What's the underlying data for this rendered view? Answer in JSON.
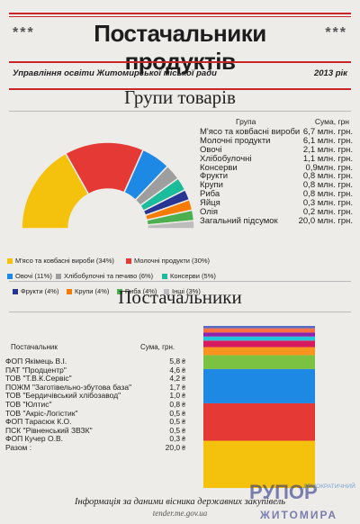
{
  "header": {
    "stars_left": "***",
    "title": "Постачальники продуктів",
    "stars_right": "***",
    "org": "Управління освіти Житомирської міської ради",
    "year": "2013 рік"
  },
  "groups_section": {
    "title": "Групи товарів",
    "col_group": "Група",
    "col_sum": "Сума, грн",
    "rows": [
      {
        "name": "М'ясо та ковбасні вироби",
        "sum": "6,7 млн. грн."
      },
      {
        "name": "Молочні продукти",
        "sum": "6,1 млн. грн."
      },
      {
        "name": "Овочі",
        "sum": "2,1 млн. грн."
      },
      {
        "name": "Хлібобулочні",
        "sum": "1,1 млн. грн."
      },
      {
        "name": "Консерви",
        "sum": "0,9млн. грн."
      },
      {
        "name": "Фрукти",
        "sum": "0,8 млн. грн."
      },
      {
        "name": "Крупи",
        "sum": "0,8 млн. грн."
      },
      {
        "name": "Риба",
        "sum": "0,8 млн. грн."
      },
      {
        "name": "Яйця",
        "sum": "0,3 млн. грн."
      },
      {
        "name": "Олія",
        "sum": "0,2 млн. грн."
      },
      {
        "name": "Загальний підсумок",
        "sum": "20,0 млн. грн."
      }
    ]
  },
  "suppliers_section": {
    "title": "Постачальники",
    "col_supplier": "Постачальник",
    "col_sum": "Сума, грн.",
    "rows": [
      {
        "name": "ФОП Якімець В.І.",
        "sum": "5,8"
      },
      {
        "name": "ПАТ \"Продцентр\"",
        "sum": "4,6"
      },
      {
        "name": "ТОВ \"Т.В.К.Сервіс\"",
        "sum": "4,2"
      },
      {
        "name": "ПОЖМ \"Заготівельно-збутова база\"",
        "sum": "1,7"
      },
      {
        "name": "ТОВ \"Бердичівський хлібозавод\"",
        "sum": "1,0"
      },
      {
        "name": "ТОВ \"Юлтис\"",
        "sum": "0,8"
      },
      {
        "name": "ТОВ \"Акріс-Логістик\"",
        "sum": "0,5"
      },
      {
        "name": "ФОП Тарасюк К.О.",
        "sum": "0,5"
      },
      {
        "name": "ПСК \"Рівненський ЗВЗК\"",
        "sum": "0,5"
      },
      {
        "name": "ФОП Кучер О.В.",
        "sum": "0,3"
      },
      {
        "name": "Разом :",
        "sum": "20,0"
      }
    ]
  },
  "footer": {
    "line1": "Інформація за даними вісника державних закупівель",
    "line2": "tender.me.gov.ua"
  },
  "logo": {
    "top": "РУПОР",
    "brand": "ДЕМОКРАТИЧНИЙ АЛЬЯНС",
    "bottom": "ЖИТОМИРА"
  },
  "chart_data": [
    {
      "type": "pie",
      "style": "half-donut",
      "title": "Групи товарів",
      "slices": [
        {
          "label": "М'ясо та ковбасні вироби (34%)",
          "value": 34,
          "color": "#f4c20d"
        },
        {
          "label": "Молочні продукти (30%)",
          "value": 30,
          "color": "#e53935"
        },
        {
          "label": "Овочі (11%)",
          "value": 11,
          "color": "#1e88e5"
        },
        {
          "label": "Хлібобулочні та печиво (6%)",
          "value": 6,
          "color": "#9e9e9e"
        },
        {
          "label": "Консерви (5%)",
          "value": 5,
          "color": "#1abc9c"
        },
        {
          "label": "Фрукти (4%)",
          "value": 4,
          "color": "#283593"
        },
        {
          "label": "Крупи (4%)",
          "value": 4,
          "color": "#f57c00"
        },
        {
          "label": "Риба (4%)",
          "value": 4,
          "color": "#4caf50"
        },
        {
          "label": "Інші (3%)",
          "value": 3,
          "color": "#bdbdbd"
        }
      ]
    },
    {
      "type": "bar",
      "style": "stacked-100",
      "title": "Постачальники",
      "segments": [
        {
          "label": "ФОП Якімець В.І.",
          "value": 5.8,
          "color": "#f4c20d"
        },
        {
          "label": "ПАТ \"Продцентр\"",
          "value": 4.6,
          "color": "#e53935"
        },
        {
          "label": "ТОВ \"Т.В.К.Сервіс\"",
          "value": 4.2,
          "color": "#1e88e5"
        },
        {
          "label": "ПОЖМ \"Заготівельно-збутова база\"",
          "value": 1.7,
          "color": "#7cc242"
        },
        {
          "label": "ТОВ \"Бердичівський хлібозавод\"",
          "value": 1.0,
          "color": "#f7941d"
        },
        {
          "label": "ТОВ \"Юлтис\"",
          "value": 0.8,
          "color": "#d81b60"
        },
        {
          "label": "ТОВ \"Акріс-Логістик\"",
          "value": 0.5,
          "color": "#26c6da"
        },
        {
          "label": "ФОП Тарасюк К.О.",
          "value": 0.5,
          "color": "#8e24aa"
        },
        {
          "label": "ПСК \"Рівненський ЗВЗК\"",
          "value": 0.5,
          "color": "#ff7043"
        },
        {
          "label": "ФОП Кучер О.В.",
          "value": 0.3,
          "color": "#5c6bc0"
        }
      ]
    }
  ]
}
